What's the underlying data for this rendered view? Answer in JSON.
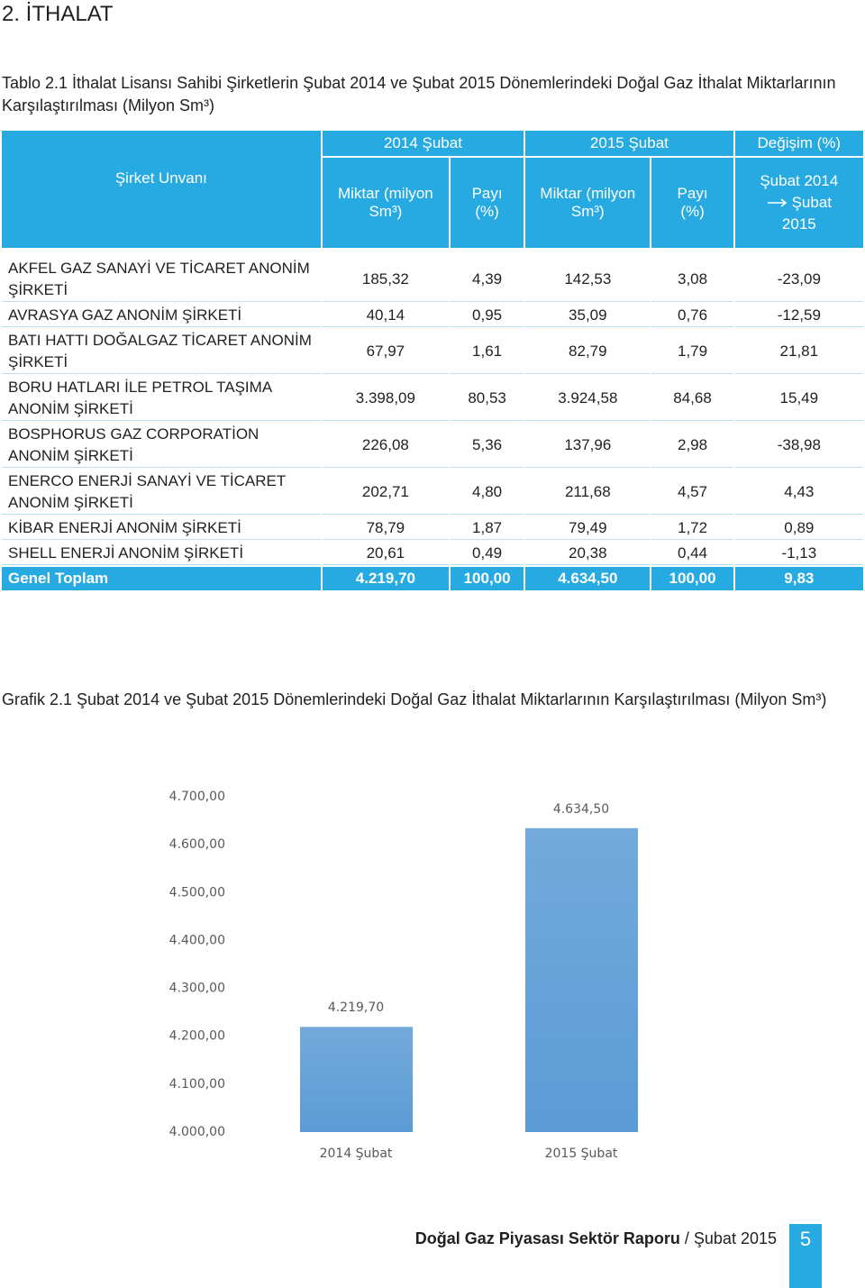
{
  "heading": "2. İTHALAT",
  "table_caption": "Tablo 2.1 İthalat Lisansı Sahibi Şirketlerin Şubat 2014 ve Şubat 2015 Dönemlerindeki Doğal Gaz İthalat Miktarlarının Karşılaştırılması (Milyon Sm³)",
  "table": {
    "company_header": "Şirket Unvanı",
    "groups": [
      "2014 Şubat",
      "2015 Şubat",
      "Değişim (%)"
    ],
    "subheaders": [
      "Miktar (milyon Sm³)",
      "Payı (%)",
      "Miktar (milyon Sm³)",
      "Payı (%)"
    ],
    "change_header": [
      "Şubat 2014",
      "Şubat",
      "2015"
    ],
    "rows": [
      [
        "AKFEL GAZ SANAYİ VE TİCARET ANONİM ŞİRKETİ",
        "185,32",
        "4,39",
        "142,53",
        "3,08",
        "-23,09"
      ],
      [
        "AVRASYA GAZ ANONİM ŞİRKETİ",
        "40,14",
        "0,95",
        "35,09",
        "0,76",
        "-12,59"
      ],
      [
        "BATI HATTI DOĞALGAZ TİCARET ANONİM ŞİRKETİ",
        "67,97",
        "1,61",
        "82,79",
        "1,79",
        "21,81"
      ],
      [
        "BORU HATLARI İLE PETROL TAŞIMA ANONİM ŞİRKETİ",
        "3.398,09",
        "80,53",
        "3.924,58",
        "84,68",
        "15,49"
      ],
      [
        "BOSPHORUS GAZ CORPORATİON ANONİM ŞİRKETİ",
        "226,08",
        "5,36",
        "137,96",
        "2,98",
        "-38,98"
      ],
      [
        "ENERCO ENERJİ SANAYİ VE TİCARET ANONİM ŞİRKETİ",
        "202,71",
        "4,80",
        "211,68",
        "4,57",
        "4,43"
      ],
      [
        "KİBAR ENERJİ ANONİM ŞİRKETİ",
        "78,79",
        "1,87",
        "79,49",
        "1,72",
        "0,89"
      ],
      [
        "SHELL ENERJİ ANONİM ŞİRKETİ",
        "20,61",
        "0,49",
        "20,38",
        "0,44",
        "-1,13"
      ]
    ],
    "total": [
      "Genel Toplam",
      "4.219,70",
      "100,00",
      "4.634,50",
      "100,00",
      "9,83"
    ]
  },
  "chart_caption": "Grafik 2.1 Şubat 2014 ve Şubat 2015 Dönemlerindeki Doğal Gaz İthalat Miktarlarının Karşılaştırılması (Milyon Sm³)",
  "chart_data": {
    "type": "bar",
    "categories": [
      "2014 Şubat",
      "2015 Şubat"
    ],
    "values": [
      4219.7,
      4634.5
    ],
    "value_labels": [
      "4.219,70",
      "4.634,50"
    ],
    "color": "#5b9bd5",
    "ylim": [
      4000,
      4700
    ],
    "yticks": [
      {
        "value": 4000,
        "label": "4.000,00"
      },
      {
        "value": 4100,
        "label": "4.100,00"
      },
      {
        "value": 4200,
        "label": "4.200,00"
      },
      {
        "value": 4300,
        "label": "4.300,00"
      },
      {
        "value": 4400,
        "label": "4.400,00"
      },
      {
        "value": 4500,
        "label": "4.500,00"
      },
      {
        "value": 4600,
        "label": "4.600,00"
      },
      {
        "value": 4700,
        "label": "4.700,00"
      }
    ],
    "grid": false
  },
  "footer": {
    "report": "Doğal Gaz Piyasası Sektör Raporu",
    "period": "/ Şubat 2015",
    "page": "5"
  }
}
